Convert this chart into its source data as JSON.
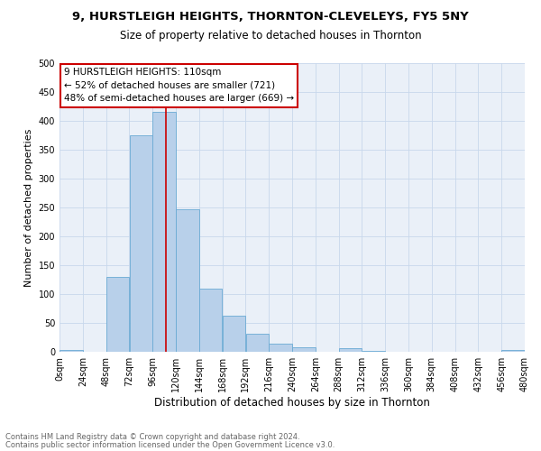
{
  "title": "9, HURSTLEIGH HEIGHTS, THORNTON-CLEVELEYS, FY5 5NY",
  "subtitle": "Size of property relative to detached houses in Thornton",
  "xlabel": "Distribution of detached houses by size in Thornton",
  "ylabel": "Number of detached properties",
  "footnote1": "Contains HM Land Registry data © Crown copyright and database right 2024.",
  "footnote2": "Contains public sector information licensed under the Open Government Licence v3.0.",
  "bar_color": "#b8d0ea",
  "bar_edge_color": "#6aaad4",
  "grid_color": "#c8d8ec",
  "annotation_box_edge_color": "#cc0000",
  "annotation_line1": "9 HURSTLEIGH HEIGHTS: 110sqm",
  "annotation_line2": "← 52% of detached houses are smaller (721)",
  "annotation_line3": "48% of semi-detached houses are larger (669) →",
  "vline_x": 110,
  "vline_color": "#cc0000",
  "bin_edges": [
    0,
    24,
    48,
    72,
    96,
    120,
    144,
    168,
    192,
    216,
    240,
    264,
    288,
    312,
    336,
    360,
    384,
    408,
    432,
    456,
    480
  ],
  "bar_heights": [
    3,
    0,
    130,
    375,
    415,
    247,
    110,
    63,
    31,
    14,
    8,
    0,
    6,
    2,
    0,
    0,
    0,
    0,
    0,
    3
  ],
  "ylim": [
    0,
    500
  ],
  "xlim": [
    0,
    480
  ],
  "yticks": [
    0,
    50,
    100,
    150,
    200,
    250,
    300,
    350,
    400,
    450,
    500
  ],
  "xtick_labels": [
    "0sqm",
    "24sqm",
    "48sqm",
    "72sqm",
    "96sqm",
    "120sqm",
    "144sqm",
    "168sqm",
    "192sqm",
    "216sqm",
    "240sqm",
    "264sqm",
    "288sqm",
    "312sqm",
    "336sqm",
    "360sqm",
    "384sqm",
    "408sqm",
    "432sqm",
    "456sqm",
    "480sqm"
  ],
  "title_fontsize": 9.5,
  "subtitle_fontsize": 8.5,
  "xlabel_fontsize": 8.5,
  "ylabel_fontsize": 8,
  "footnote_fontsize": 6,
  "annotation_fontsize": 7.5,
  "tick_fontsize": 7
}
